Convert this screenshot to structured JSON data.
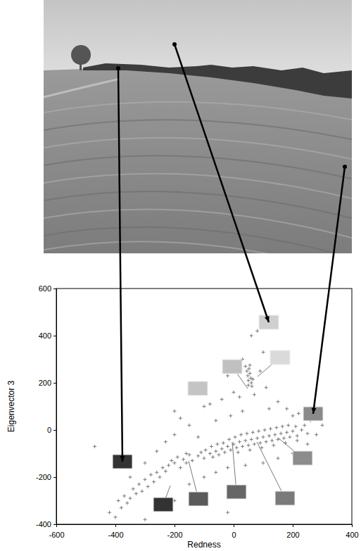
{
  "chart_data": {
    "type": "scatter",
    "xlabel": "Redness",
    "ylabel": "Eigenvector 3",
    "xlim": [
      -600,
      400
    ],
    "ylim": [
      -400,
      600
    ],
    "xticks": [
      -600,
      -400,
      -200,
      0,
      200,
      400
    ],
    "yticks": [
      -400,
      -200,
      0,
      200,
      400,
      600
    ],
    "color": "#7a7a7a",
    "marker": "plus",
    "x": [
      -120,
      -110,
      -100,
      -95,
      -80,
      -75,
      -70,
      -60,
      -55,
      -50,
      -40,
      -35,
      -30,
      -20,
      -15,
      -10,
      0,
      5,
      10,
      20,
      25,
      30,
      40,
      45,
      50,
      60,
      65,
      70,
      80,
      85,
      90,
      100,
      105,
      110,
      120,
      125,
      130,
      140,
      145,
      150,
      160,
      165,
      170,
      180,
      185,
      190,
      200,
      210,
      215,
      230,
      240,
      250,
      -140,
      -150,
      -160,
      15,
      55,
      95,
      135,
      175,
      215,
      40,
      45,
      48,
      50,
      52,
      55,
      58,
      60,
      62,
      55,
      65,
      50,
      80,
      60,
      100,
      30,
      -20,
      0,
      20,
      110,
      150,
      120,
      -40,
      -80,
      -100,
      70,
      90,
      -10,
      200,
      180,
      260,
      -60,
      -150,
      -200,
      -180,
      30,
      -120,
      -470,
      -400,
      -390,
      -380,
      -370,
      -360,
      -350,
      -340,
      -330,
      -320,
      -310,
      -300,
      -290,
      -280,
      -270,
      -260,
      -250,
      -240,
      -230,
      -220,
      -210,
      -200,
      -190,
      -180,
      -170,
      -160,
      -300,
      -260,
      -230,
      -200,
      -420,
      -350,
      -230,
      -200,
      -250,
      -300,
      -150,
      -100,
      -60,
      -20,
      40,
      100,
      150,
      200,
      250,
      280,
      300,
      260,
      220,
      -20
    ],
    "values": [
      -110,
      -95,
      -120,
      -85,
      -100,
      -70,
      -115,
      -90,
      -60,
      -105,
      -80,
      -55,
      -95,
      -70,
      -40,
      -85,
      -60,
      -30,
      -75,
      -50,
      -20,
      -70,
      -45,
      -15,
      -65,
      -40,
      -10,
      -60,
      -35,
      -5,
      -55,
      -30,
      0,
      -50,
      -25,
      5,
      -45,
      -20,
      10,
      -40,
      -15,
      15,
      -35,
      -10,
      20,
      -30,
      -5,
      15,
      -25,
      0,
      20,
      -15,
      -130,
      -105,
      -140,
      -95,
      -85,
      -75,
      -65,
      -55,
      -45,
      270,
      250,
      230,
      210,
      260,
      240,
      220,
      200,
      185,
      275,
      215,
      190,
      420,
      400,
      330,
      300,
      230,
      160,
      140,
      180,
      120,
      90,
      130,
      110,
      100,
      150,
      250,
      60,
      60,
      90,
      40,
      40,
      20,
      80,
      50,
      80,
      -30,
      -70,
      -370,
      -300,
      -330,
      -280,
      -310,
      -290,
      -250,
      -270,
      -230,
      -260,
      -210,
      -240,
      -190,
      -220,
      -180,
      -200,
      -160,
      -175,
      -150,
      -130,
      -140,
      -115,
      -160,
      -125,
      -100,
      -140,
      -90,
      -50,
      -20,
      -350,
      -200,
      -290,
      -300,
      -330,
      -380,
      -230,
      -200,
      -180,
      -160,
      -150,
      -140,
      -120,
      -100,
      -60,
      -20,
      20,
      60,
      70,
      -350
    ]
  }
}
